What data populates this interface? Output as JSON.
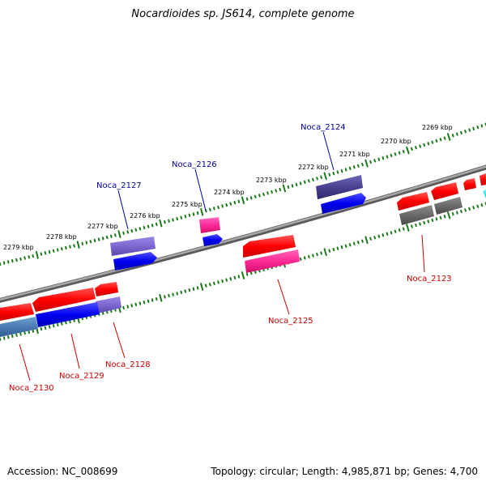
{
  "title": "Nocardioides sp. JS614, complete genome",
  "footer": {
    "accession": "Accession: NC_008699",
    "summary": "Topology: circular; Length: 4,985,871 bp; Genes: 4,700"
  },
  "colors": {
    "backbone": "#7a7a7a",
    "scale_ticks": "#1a7a1a",
    "label_red": "#cc0000",
    "label_blue": "#00009f"
  },
  "scale_labels": [
    "2279 kbp",
    "2278 kbp",
    "2277 kbp",
    "2276 kbp",
    "2275 kbp",
    "2274 kbp",
    "2273 kbp",
    "2272 kbp",
    "2271 kbp",
    "2270 kbp",
    "2269 kbp"
  ],
  "gene_labels": {
    "noca_2124": "Noca_2124",
    "noca_2126": "Noca_2126",
    "noca_2127": "Noca_2127",
    "noca_2123": "Noca_2123",
    "noca_2125": "Noca_2125",
    "noca_2128": "Noca_2128",
    "noca_2129": "Noca_2129",
    "noca_2130": "Noca_2130"
  }
}
